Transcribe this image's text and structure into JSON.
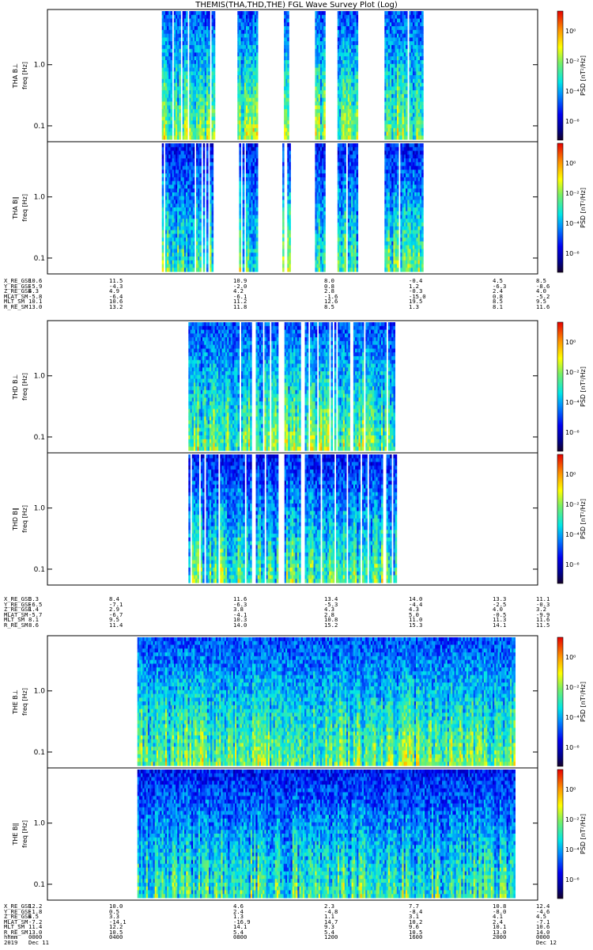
{
  "title": "THEMIS(THA,THD,THE) FGL Wave Survey Plot (Log)",
  "chart_data": [
    {
      "type": "heatmap",
      "probe": "THA",
      "panels": [
        {
          "ylabel": "THA B⊥",
          "yunit": "freq [Hz]"
        },
        {
          "ylabel": "THA B∥",
          "yunit": "freq [Hz]"
        }
      ],
      "y_scale": "log",
      "y_ticks": [
        "0.1",
        "1.0"
      ],
      "colorbar": {
        "label": "PSD [nT²/Hz]",
        "ticks": [
          "10⁰",
          "10⁻²",
          "10⁻⁴",
          "10⁻⁶"
        ]
      },
      "data_intervals_hours": [
        [
          5.6,
          8.2
        ],
        [
          9.3,
          10.3
        ],
        [
          11.5,
          11.9
        ],
        [
          13.1,
          13.6
        ],
        [
          14.2,
          15.2
        ],
        [
          16.5,
          18.4
        ]
      ],
      "ephemeris": {
        "labels": [
          "X_RE_GSE",
          "Y_RE_GSE",
          "Z_RE_GSE",
          "MLAT_SM",
          "MLT_SM",
          "R_RE_SM"
        ],
        "ticks": [
          [
            "10.6",
            "-5.9",
            "4.3",
            "-5.8",
            "10.1",
            "13.0"
          ],
          [
            "11.5",
            "-4.3",
            "4.9",
            "-6.4",
            "10.6",
            "13.2"
          ],
          [
            "10.9",
            "-2.0",
            "4.2",
            "-6.1",
            "11.2",
            "11.8"
          ],
          [
            "8.0",
            "0.8",
            "2.8",
            "-1.6",
            "12.6",
            "8.5"
          ],
          [
            "-0.4",
            "1.2",
            "-0.3",
            "-15.0",
            "19.5",
            "1.3"
          ],
          [
            "4.5",
            "-6.3",
            "2.4",
            "0.8",
            "8.5",
            "8.1"
          ],
          [
            "8.5",
            "-8.6",
            "4.0",
            "-5.2",
            "9.5",
            "11.6"
          ]
        ]
      }
    },
    {
      "type": "heatmap",
      "probe": "THD",
      "panels": [
        {
          "ylabel": "THD B⊥",
          "yunit": "freq [Hz]"
        },
        {
          "ylabel": "THD B∥",
          "yunit": "freq [Hz]"
        }
      ],
      "y_scale": "log",
      "y_ticks": [
        "0.1",
        "1.0"
      ],
      "colorbar": {
        "label": "PSD [nT²/Hz]",
        "ticks": [
          "10⁰",
          "10⁻²",
          "10⁻⁴",
          "10⁻⁶"
        ]
      },
      "data_intervals_hours": [
        [
          6.9,
          10.0
        ],
        [
          10.2,
          11.3
        ],
        [
          11.6,
          12.4
        ],
        [
          12.6,
          17.1
        ]
      ],
      "ephemeris": {
        "labels": [
          "X_RE_GSE",
          "Y_RE_GSE",
          "Z_RE_GSE",
          "MLAT_SM",
          "MLT_SM",
          "R_RE_SM"
        ],
        "ticks": [
          [
            "3.3",
            "-6.5",
            "1.4",
            "-5.7",
            "8.1",
            "8.6"
          ],
          [
            "8.4",
            "-7.1",
            "2.9",
            "-6.7",
            "9.5",
            "11.4"
          ],
          [
            "11.6",
            "-6.3",
            "3.8",
            "-4.1",
            "10.3",
            "14.0"
          ],
          [
            "13.4",
            "-5.3",
            "4.3",
            "2.8",
            "10.8",
            "15.2"
          ],
          [
            "14.0",
            "-4.4",
            "4.3",
            "5.0",
            "11.0",
            "15.3"
          ],
          [
            "13.3",
            "-2.5",
            "4.0",
            "-0.5",
            "11.3",
            "14.1"
          ],
          [
            "11.1",
            "-0.3",
            "3.2",
            "-9.9",
            "11.6",
            "11.5"
          ]
        ]
      }
    },
    {
      "type": "heatmap",
      "probe": "THE",
      "panels": [
        {
          "ylabel": "THE B⊥",
          "yunit": "freq [Hz]"
        },
        {
          "ylabel": "THE B∥",
          "yunit": "freq [Hz]"
        }
      ],
      "y_scale": "log",
      "y_ticks": [
        "0.1",
        "1.0"
      ],
      "colorbar": {
        "label": "PSD [nT²/Hz]",
        "ticks": [
          "10⁰",
          "10⁻²",
          "10⁻⁴",
          "10⁻⁶"
        ]
      },
      "data_intervals_hours": [
        [
          4.4,
          22.9
        ]
      ],
      "ephemeris": {
        "labels": [
          "X_RE_GSE",
          "Y_RE_GSE",
          "Z_RE_GSE",
          "MLAT_SM",
          "MLT_SM",
          "R_RE_SM",
          "hhmm",
          "2019"
        ],
        "ticks": [
          [
            "12.2",
            "-1.8",
            "4.5",
            "-7.2",
            "11.4",
            "13.0",
            "0000",
            "Dec 11"
          ],
          [
            "10.0",
            "0.5",
            "3.3",
            "-14.1",
            "12.2",
            "10.5",
            "0400",
            ""
          ],
          [
            "4.6",
            "2.4",
            "1.3",
            "-16.9",
            "14.1",
            "5.4",
            "0800",
            ""
          ],
          [
            "2.3",
            "-4.8",
            "1.1",
            "14.7",
            "9.3",
            "5.4",
            "1200",
            ""
          ],
          [
            "7.7",
            "-8.4",
            "3.1",
            "10.2",
            "9.6",
            "10.5",
            "1600",
            ""
          ],
          [
            "10.8",
            "-8.0",
            "4.1",
            "2.4",
            "10.1",
            "13.0",
            "2000",
            ""
          ],
          [
            "12.4",
            "-4.6",
            "4.5",
            "-7.1",
            "10.6",
            "14.0",
            "0000",
            "Dec 12"
          ]
        ]
      }
    }
  ]
}
